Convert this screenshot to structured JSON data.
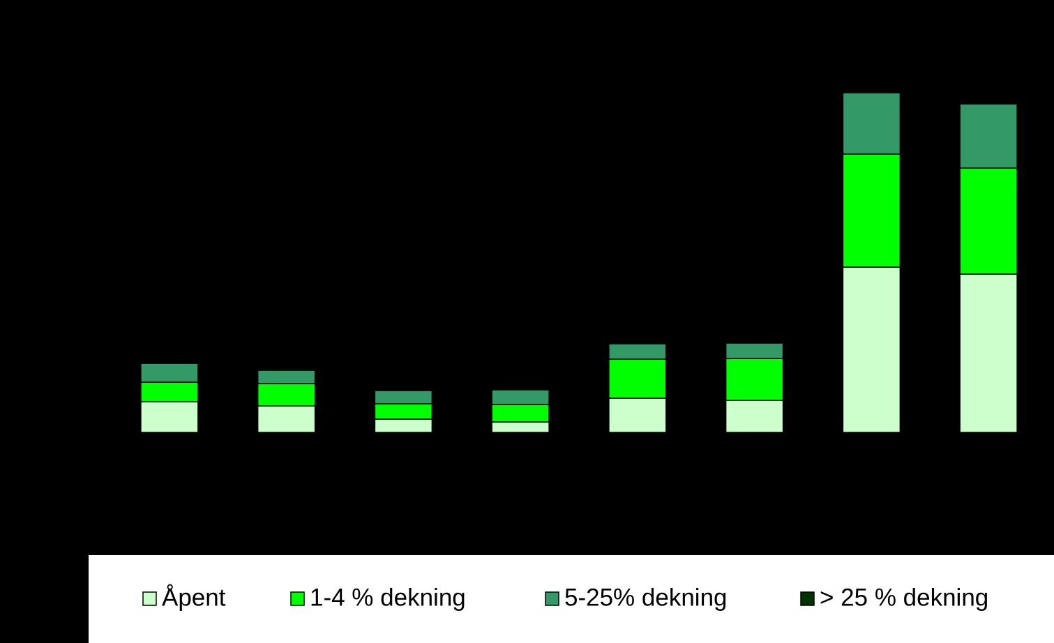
{
  "chart_data": {
    "type": "stacked_bar",
    "categories": [
      null,
      null,
      null,
      null,
      null,
      null,
      null,
      null
    ],
    "series": [
      {
        "name": "Åpent",
        "color": "#ccffcc",
        "values": [
          44,
          38,
          19,
          15,
          49,
          46,
          237,
          227
        ]
      },
      {
        "name": "1-4 % dekning",
        "color": "#00ff00",
        "values": [
          28,
          32,
          22,
          25,
          56,
          60,
          162,
          152
        ]
      },
      {
        "name": "5-25% dekning",
        "color": "#339966",
        "values": [
          27,
          19,
          19,
          21,
          22,
          22,
          88,
          92
        ]
      },
      {
        "name": "> 25 % dekning",
        "color": "#003300",
        "values": [
          1,
          2,
          0,
          0,
          0,
          0,
          0,
          0
        ]
      }
    ],
    "ylim": [
      0,
      620
    ],
    "legend": "bottom"
  }
}
